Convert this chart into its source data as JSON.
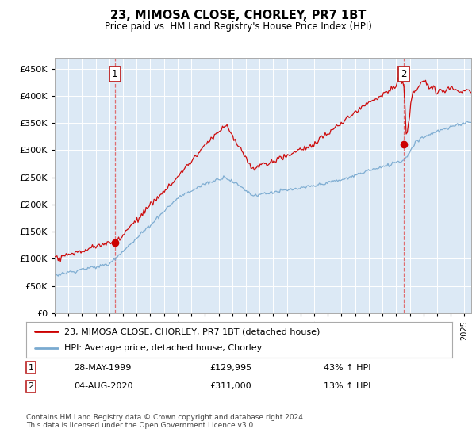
{
  "title": "23, MIMOSA CLOSE, CHORLEY, PR7 1BT",
  "subtitle": "Price paid vs. HM Land Registry's House Price Index (HPI)",
  "plot_bg_color": "#dce9f5",
  "yticks": [
    0,
    50000,
    100000,
    150000,
    200000,
    250000,
    300000,
    350000,
    400000,
    450000
  ],
  "ylim": [
    0,
    470000
  ],
  "xlim_start": 1995.0,
  "xlim_end": 2025.5,
  "purchase1_year": 1999.41,
  "purchase1_value": 129995,
  "purchase2_year": 2020.583,
  "purchase2_value": 311000,
  "legend_label_red": "23, MIMOSA CLOSE, CHORLEY, PR7 1BT (detached house)",
  "legend_label_blue": "HPI: Average price, detached house, Chorley",
  "annotation1_date": "28-MAY-1999",
  "annotation1_price": "£129,995",
  "annotation1_hpi": "43% ↑ HPI",
  "annotation2_date": "04-AUG-2020",
  "annotation2_price": "£311,000",
  "annotation2_hpi": "13% ↑ HPI",
  "footer": "Contains HM Land Registry data © Crown copyright and database right 2024.\nThis data is licensed under the Open Government Licence v3.0.",
  "red_color": "#cc0000",
  "blue_color": "#7aaad0",
  "dashed_red": "#e06060"
}
